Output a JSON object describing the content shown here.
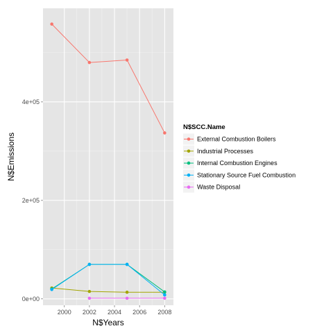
{
  "chart_data": {
    "type": "line",
    "xlabel": "N$Years",
    "ylabel": "N$Emissions",
    "xlim": [
      1998.3,
      2008.7
    ],
    "ylim": [
      -13000,
      590000
    ],
    "x_ticks": [
      2000,
      2002,
      2004,
      2006,
      2008
    ],
    "x_tick_labels": [
      "2000",
      "2002",
      "2004",
      "2006",
      "2008"
    ],
    "y_ticks": [
      0,
      200000,
      400000
    ],
    "y_tick_labels": [
      "0e+00",
      "2e+05",
      "4e+05"
    ],
    "grid": true,
    "legend": {
      "title": "N$SCC.Name",
      "position": "right"
    },
    "series": [
      {
        "name": "External Combustion Boilers",
        "color": "#F8766D",
        "x": [
          1999,
          2002,
          2005,
          2008
        ],
        "y": [
          558000,
          480000,
          485000,
          337000
        ]
      },
      {
        "name": "Industrial Processes",
        "color": "#A3A500",
        "x": [
          1999,
          2002,
          2005,
          2008
        ],
        "y": [
          22000,
          15000,
          13500,
          13500
        ]
      },
      {
        "name": "Internal Combustion Engines",
        "color": "#00BF7D",
        "x": [
          1999,
          2002,
          2005,
          2008
        ],
        "y": [
          20000,
          70000,
          70000,
          14000
        ]
      },
      {
        "name": "Stationary Source Fuel Combustion",
        "color": "#00B0F6",
        "x": [
          1999,
          2002,
          2005,
          2008
        ],
        "y": [
          19000,
          70000,
          70000,
          8000
        ]
      },
      {
        "name": "Waste Disposal",
        "color": "#E76BF3",
        "x": [
          2002,
          2005,
          2008
        ],
        "y": [
          1200,
          1200,
          1200
        ]
      }
    ]
  }
}
